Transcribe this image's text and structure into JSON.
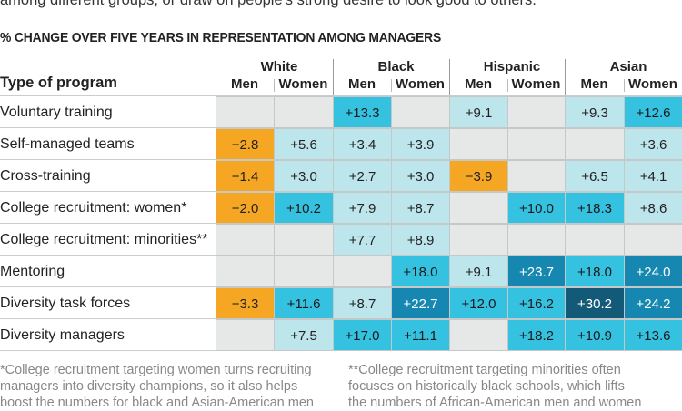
{
  "intro_text": "among different groups, or draw on people's strong desire to look good to others.",
  "chart_data": {
    "type": "heatmap",
    "title": "% CHANGE OVER FIVE YEARS IN REPRESENTATION AMONG MANAGERS",
    "row_header": "Type of program",
    "groups": [
      "White",
      "Black",
      "Hispanic",
      "Asian"
    ],
    "subgroups": [
      "Men",
      "Women"
    ],
    "columns": [
      "White Men",
      "White Women",
      "Black Men",
      "Black Women",
      "Hispanic Men",
      "Hispanic Women",
      "Asian Men",
      "Asian Women"
    ],
    "rows": [
      {
        "label": "Voluntary training",
        "values": [
          null,
          null,
          13.3,
          null,
          9.1,
          null,
          9.3,
          12.6
        ]
      },
      {
        "label": "Self-managed teams",
        "values": [
          -2.8,
          5.6,
          3.4,
          3.9,
          null,
          null,
          null,
          3.6
        ]
      },
      {
        "label": "Cross-training",
        "values": [
          -1.4,
          3.0,
          2.7,
          3.0,
          -3.9,
          null,
          6.5,
          4.1
        ]
      },
      {
        "label": "College recruitment: women*",
        "values": [
          -2.0,
          10.2,
          7.9,
          8.7,
          null,
          10.0,
          18.3,
          8.6
        ]
      },
      {
        "label": "College recruitment: minorities**",
        "values": [
          null,
          null,
          7.7,
          8.9,
          null,
          null,
          null,
          null
        ]
      },
      {
        "label": "Mentoring",
        "values": [
          null,
          null,
          null,
          18.0,
          9.1,
          23.7,
          18.0,
          24.0
        ]
      },
      {
        "label": "Diversity task forces",
        "values": [
          -3.3,
          11.6,
          8.7,
          22.7,
          12.0,
          16.2,
          30.2,
          24.2
        ]
      },
      {
        "label": "Diversity managers",
        "values": [
          null,
          7.5,
          17.0,
          11.1,
          null,
          18.2,
          10.9,
          13.6
        ]
      }
    ],
    "colors": {
      "no_effect": "#e6e7e7",
      "negative": "#f5a623",
      "up_to_10": "#bde6ec",
      "10_to_20": "#35c2e1",
      "20_to_30": "#1587b0",
      "over_30": "#135a78"
    }
  },
  "footnotes": [
    [
      "*College recruitment targeting women turns recruiting",
      "managers into diversity champions, so it also helps",
      "boost the numbers for black and Asian-American men"
    ],
    [
      "**College recruitment targeting minorities often",
      "focuses on historically black schools, which lifts",
      "the numbers of African-American men and women"
    ]
  ]
}
